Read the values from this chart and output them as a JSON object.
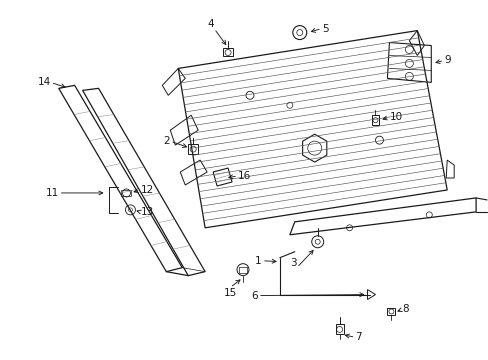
{
  "bg_color": "#ffffff",
  "line_color": "#1a1a1a",
  "fig_width": 4.89,
  "fig_height": 3.6,
  "dpi": 100,
  "fs": 7.5
}
